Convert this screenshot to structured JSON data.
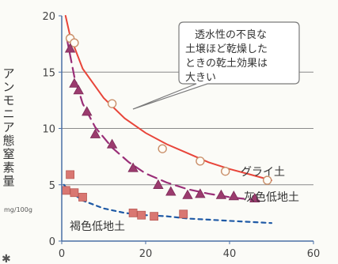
{
  "chart_data": {
    "type": "scatter",
    "ylabel": "アンモニア態窒素量",
    "yunit": "mg/100g",
    "xlim": [
      0,
      60
    ],
    "ylim": [
      0,
      20
    ],
    "xticks": [
      "0",
      "20",
      "40",
      "60"
    ],
    "yticks": [
      "0",
      "5",
      "10",
      "15",
      "20"
    ],
    "grid": "horizontal",
    "colors": {
      "gley": "#e8453a",
      "gray_lowland": "#9a2f78",
      "brown_lowland": "#1f5aa6",
      "marker_fill": "#d97772",
      "axis": "#4a6fa5"
    },
    "series": [
      {
        "name": "グライ土",
        "marker": "circle-open",
        "line": "solid",
        "points": [
          [
            2,
            18
          ],
          [
            3,
            17.6
          ],
          [
            12,
            12.2
          ],
          [
            24,
            8.2
          ],
          [
            33,
            7.1
          ],
          [
            39,
            6.2
          ],
          [
            49,
            5.4
          ]
        ],
        "curve": [
          [
            0.9,
            20
          ],
          [
            2,
            18.2
          ],
          [
            5,
            15.3
          ],
          [
            10,
            12.7
          ],
          [
            15,
            10.9
          ],
          [
            20,
            9.6
          ],
          [
            25,
            8.6
          ],
          [
            30,
            7.8
          ],
          [
            35,
            7.0
          ],
          [
            40,
            6.4
          ],
          [
            45,
            5.9
          ],
          [
            50,
            5.4
          ]
        ]
      },
      {
        "name": "灰色低地土",
        "marker": "triangle",
        "line": "dashed",
        "points": [
          [
            2,
            17.1
          ],
          [
            3,
            14
          ],
          [
            4,
            13.4
          ],
          [
            6,
            11.5
          ],
          [
            8,
            9.5
          ],
          [
            12,
            8.6
          ],
          [
            17,
            6.5
          ],
          [
            23,
            5.0
          ],
          [
            26,
            4.4
          ],
          [
            30,
            4.1
          ],
          [
            33,
            4.2
          ],
          [
            38,
            4.1
          ],
          [
            41,
            4.0
          ],
          [
            46,
            3.8
          ]
        ],
        "curve": [
          [
            1.2,
            18
          ],
          [
            3,
            14.6
          ],
          [
            5,
            12.2
          ],
          [
            8,
            10.1
          ],
          [
            12,
            8.3
          ],
          [
            16,
            7.0
          ],
          [
            20,
            6.0
          ],
          [
            25,
            5.2
          ],
          [
            30,
            4.6
          ],
          [
            35,
            4.2
          ],
          [
            40,
            3.9
          ],
          [
            47,
            3.6
          ]
        ]
      },
      {
        "name": "褐色低地土",
        "marker": "square",
        "line": "short-dashed",
        "points": [
          [
            1,
            4.5
          ],
          [
            2,
            5.9
          ],
          [
            3,
            4.3
          ],
          [
            5,
            3.9
          ],
          [
            17,
            2.5
          ],
          [
            19,
            2.3
          ],
          [
            22,
            2.2
          ],
          [
            29,
            2.4
          ]
        ],
        "curve": [
          [
            0.5,
            5.0
          ],
          [
            2,
            4.4
          ],
          [
            5,
            3.6
          ],
          [
            10,
            2.9
          ],
          [
            15,
            2.5
          ],
          [
            20,
            2.3
          ],
          [
            25,
            2.2
          ],
          [
            30,
            2.0
          ],
          [
            35,
            1.9
          ],
          [
            40,
            1.8
          ],
          [
            45,
            1.7
          ],
          [
            50,
            1.6
          ]
        ]
      }
    ],
    "annotation": "透水性の不良な土壌ほど乾燥したときの乾土効果は大きい"
  },
  "labels": {
    "gley": "グライ土",
    "gray_lowland": "灰色低地土",
    "brown_lowland": "褐色低地土",
    "callout_lines": [
      "透水性の不良な",
      "土壌ほど乾燥した",
      "ときの乾土効果は",
      "大きい"
    ]
  }
}
